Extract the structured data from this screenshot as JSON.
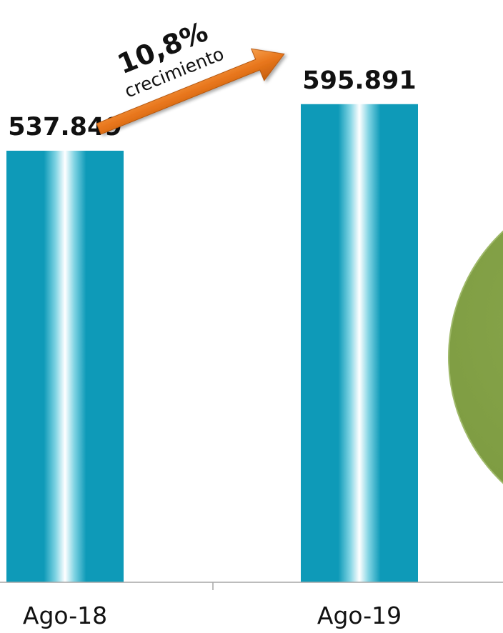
{
  "chart_data": {
    "type": "bar",
    "categories": [
      "Ago-18",
      "Ago-19"
    ],
    "values": [
      537849,
      595891
    ],
    "value_labels": [
      "537.849",
      "595.891"
    ],
    "ylim": [
      0,
      650000
    ],
    "grid": false,
    "colors": {
      "bar": "#0E9AB8",
      "bar_highlight": "#FFFFFF",
      "arrow": "#E8761C",
      "circle": "#86A44A",
      "axis": "#A6A6A6"
    }
  },
  "annotation": {
    "growth_value": "10,8%",
    "growth_text": "crecimiento",
    "icon": "arrow-up-right-icon"
  }
}
